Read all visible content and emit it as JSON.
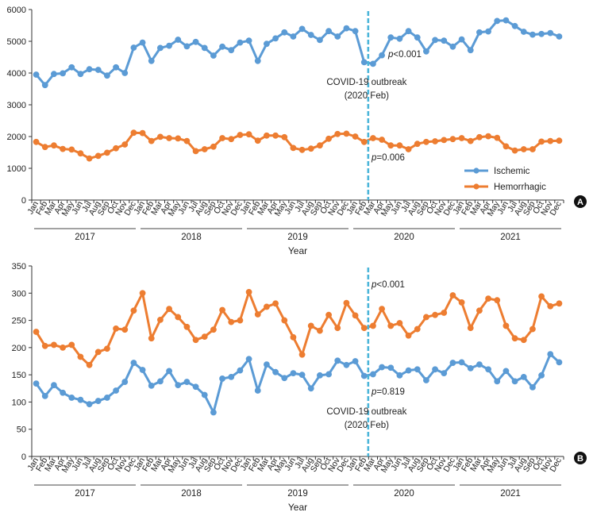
{
  "months": [
    "Jan",
    "Feb",
    "Mar",
    "Apr",
    "May",
    "Jun",
    "Jul",
    "Aug",
    "Sep",
    "Oct",
    "Nov",
    "Dec"
  ],
  "years": [
    "2017",
    "2018",
    "2019",
    "2020",
    "2021"
  ],
  "colors": {
    "ischemic": "#5b9bd5",
    "hemorrhagic": "#ed7d31",
    "outbreak_line": "#4bb5d9"
  },
  "chart_data": [
    {
      "panel": "A",
      "type": "line",
      "title": "",
      "xlabel": "Year",
      "ylabel": "",
      "ylim": [
        0,
        6000
      ],
      "yticks": [
        0,
        1000,
        2000,
        3000,
        4000,
        5000,
        6000
      ],
      "ytick_labels": [
        "0",
        "1000",
        "2000",
        "3000",
        "4000",
        "5000",
        "6000"
      ],
      "legend": [
        "Ischemic",
        "Hemorrhagic"
      ],
      "legend_position": "lower-right",
      "outbreak_index": 37.5,
      "outbreak_label_line1": "COVID-19 outbreak",
      "outbreak_label_line2": "(2020 Feb)",
      "p_values": [
        {
          "prefix": "p",
          "text": "<0.001",
          "series": "Ischemic"
        },
        {
          "prefix": "p",
          "text": "=0.006",
          "series": "Hemorrhagic"
        }
      ],
      "series": [
        {
          "name": "Ischemic",
          "color_key": "ischemic",
          "values": [
            3950,
            3620,
            3970,
            3990,
            4180,
            3970,
            4120,
            4100,
            3920,
            4180,
            4000,
            4800,
            4960,
            4380,
            4790,
            4860,
            5050,
            4840,
            4980,
            4790,
            4550,
            4830,
            4720,
            4960,
            5020,
            4380,
            4920,
            5090,
            5280,
            5150,
            5390,
            5200,
            5040,
            5320,
            5150,
            5410,
            5320,
            4340,
            4290,
            4560,
            5120,
            5080,
            5320,
            5120,
            4680,
            5040,
            5020,
            4830,
            5060,
            4720,
            5280,
            5310,
            5640,
            5660,
            5480,
            5300,
            5210,
            5230,
            5260,
            5150
          ]
        },
        {
          "name": "Hemorrhagic",
          "color_key": "hemorrhagic",
          "values": [
            1830,
            1670,
            1720,
            1610,
            1590,
            1470,
            1310,
            1390,
            1490,
            1630,
            1750,
            2120,
            2110,
            1860,
            1990,
            1950,
            1940,
            1860,
            1540,
            1600,
            1680,
            1950,
            1920,
            2050,
            2070,
            1870,
            2030,
            2030,
            1980,
            1640,
            1580,
            1620,
            1720,
            1930,
            2080,
            2090,
            2000,
            1830,
            1950,
            1900,
            1720,
            1720,
            1600,
            1770,
            1830,
            1850,
            1890,
            1920,
            1950,
            1860,
            1980,
            2010,
            1960,
            1690,
            1560,
            1600,
            1600,
            1840,
            1860,
            1870
          ]
        }
      ]
    },
    {
      "panel": "B",
      "type": "line",
      "title": "",
      "xlabel": "Year",
      "ylabel": "",
      "ylim": [
        0,
        350
      ],
      "yticks": [
        0,
        50,
        100,
        150,
        200,
        250,
        300,
        350
      ],
      "ytick_labels": [
        "0",
        "50",
        "100",
        "150",
        "200",
        "250",
        "300",
        "350"
      ],
      "legend": [],
      "outbreak_index": 37.5,
      "outbreak_label_line1": "COVID-19 outbreak",
      "outbreak_label_line2": "(2020 Feb)",
      "p_values": [
        {
          "prefix": "p",
          "text": "<0.001",
          "series": "Hemorrhagic"
        },
        {
          "prefix": "p",
          "text": "=0.819",
          "series": "Ischemic"
        }
      ],
      "series": [
        {
          "name": "Hemorrhagic",
          "color_key": "hemorrhagic",
          "values": [
            229,
            203,
            205,
            200,
            205,
            183,
            168,
            192,
            198,
            235,
            233,
            268,
            300,
            217,
            251,
            271,
            256,
            238,
            214,
            220,
            233,
            269,
            247,
            250,
            302,
            261,
            275,
            281,
            250,
            219,
            187,
            240,
            231,
            260,
            236,
            282,
            259,
            236,
            240,
            271,
            240,
            245,
            222,
            234,
            256,
            260,
            264,
            296,
            283,
            236,
            268,
            290,
            287,
            240,
            217,
            214,
            234,
            294,
            276,
            281
          ]
        },
        {
          "name": "Ischemic",
          "color_key": "ischemic",
          "values": [
            134,
            111,
            131,
            117,
            108,
            104,
            96,
            102,
            108,
            121,
            137,
            172,
            159,
            130,
            138,
            157,
            131,
            137,
            128,
            113,
            81,
            143,
            146,
            158,
            179,
            121,
            169,
            155,
            144,
            153,
            150,
            125,
            149,
            151,
            176,
            168,
            175,
            148,
            151,
            164,
            163,
            149,
            158,
            160,
            140,
            160,
            153,
            172,
            173,
            162,
            169,
            160,
            138,
            157,
            138,
            146,
            127,
            149,
            188,
            173
          ]
        }
      ]
    }
  ],
  "panel_labels": {
    "A": "A",
    "B": "B"
  }
}
